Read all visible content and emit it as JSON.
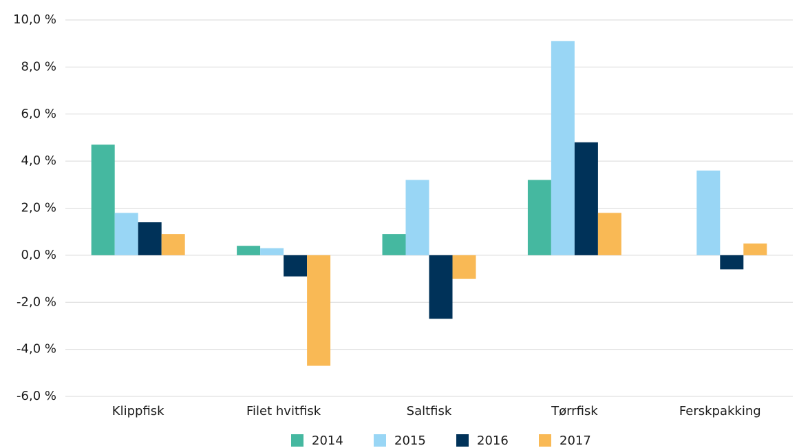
{
  "chart_data": {
    "type": "bar",
    "categories": [
      "Klippfisk",
      "Filet hvitfisk",
      "Saltfisk",
      "Tørrfisk",
      "Ferskpakking"
    ],
    "series": [
      {
        "name": "2014",
        "color": "#45b8a0",
        "values": [
          4.7,
          0.4,
          0.9,
          3.2,
          null
        ]
      },
      {
        "name": "2015",
        "color": "#99d6f5",
        "values": [
          1.8,
          0.3,
          3.2,
          9.1,
          3.6
        ]
      },
      {
        "name": "2016",
        "color": "#003259",
        "values": [
          1.4,
          -0.9,
          -2.7,
          4.8,
          -0.6
        ]
      },
      {
        "name": "2017",
        "color": "#f9b955",
        "values": [
          0.9,
          -4.7,
          -1.0,
          1.8,
          0.5
        ]
      }
    ],
    "ylim": [
      -6,
      10
    ],
    "yticks": [
      {
        "value": -6,
        "label": "-6,0 %"
      },
      {
        "value": -4,
        "label": "-4,0 %"
      },
      {
        "value": -2,
        "label": "-2,0 %"
      },
      {
        "value": 0,
        "label": "0,0 %"
      },
      {
        "value": 2,
        "label": "2,0 %"
      },
      {
        "value": 4,
        "label": "4,0 %"
      },
      {
        "value": 6,
        "label": "6,0 %"
      },
      {
        "value": 8,
        "label": "8,0 %"
      },
      {
        "value": 10,
        "label": "10,0 %"
      }
    ],
    "grid": true,
    "legend": "bottom"
  }
}
